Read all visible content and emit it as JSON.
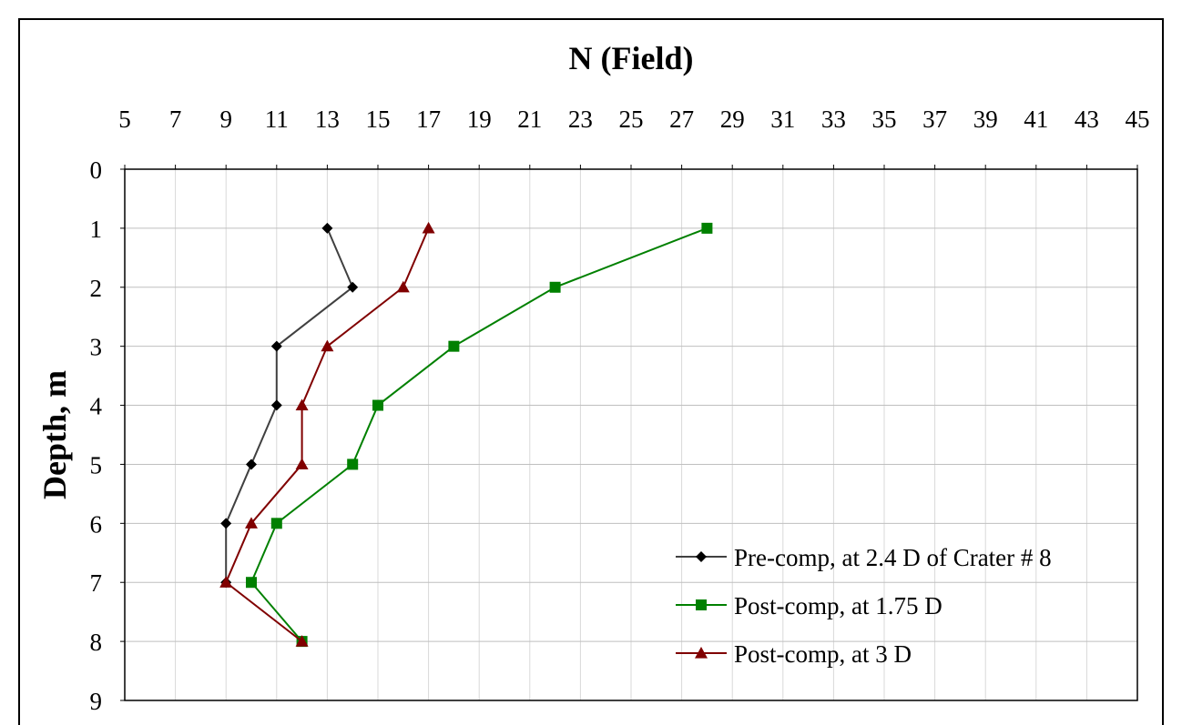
{
  "chart_data": {
    "type": "line",
    "title": "",
    "xlabel": "N (Field)",
    "ylabel": "Depth, m",
    "xlim": [
      5,
      45
    ],
    "ylim": [
      0,
      9
    ],
    "x_axis_position": "top",
    "y_axis_inverted": true,
    "x_ticks": [
      "5",
      "7",
      "9",
      "11",
      "13",
      "15",
      "17",
      "19",
      "21",
      "23",
      "25",
      "27",
      "29",
      "31",
      "33",
      "35",
      "37",
      "39",
      "41",
      "43",
      "45"
    ],
    "y_ticks": [
      "0",
      "1",
      "2",
      "3",
      "4",
      "5",
      "6",
      "7",
      "8",
      "9"
    ],
    "grid": true,
    "legend_position": "bottom-right",
    "series": [
      {
        "name": "Pre-comp, at 2.4 D of Crater # 8",
        "color": "#404040",
        "marker": "diamond",
        "marker_color": "#000000",
        "points": [
          {
            "x": 13,
            "y": 1
          },
          {
            "x": 14,
            "y": 2
          },
          {
            "x": 11,
            "y": 3
          },
          {
            "x": 11,
            "y": 4
          },
          {
            "x": 10,
            "y": 5
          },
          {
            "x": 9,
            "y": 6
          },
          {
            "x": 9,
            "y": 7
          }
        ]
      },
      {
        "name": "Post-comp, at 1.75 D",
        "color": "#008000",
        "marker": "square",
        "marker_color": "#008000",
        "points": [
          {
            "x": 28,
            "y": 1
          },
          {
            "x": 22,
            "y": 2
          },
          {
            "x": 18,
            "y": 3
          },
          {
            "x": 15,
            "y": 4
          },
          {
            "x": 14,
            "y": 5
          },
          {
            "x": 11,
            "y": 6
          },
          {
            "x": 10,
            "y": 7
          },
          {
            "x": 12,
            "y": 8
          }
        ]
      },
      {
        "name": "Post-comp, at 3 D",
        "color": "#800000",
        "marker": "triangle",
        "marker_color": "#800000",
        "points": [
          {
            "x": 17,
            "y": 1
          },
          {
            "x": 16,
            "y": 2
          },
          {
            "x": 13,
            "y": 3
          },
          {
            "x": 12,
            "y": 4
          },
          {
            "x": 12,
            "y": 5
          },
          {
            "x": 10,
            "y": 6
          },
          {
            "x": 9,
            "y": 7
          },
          {
            "x": 12,
            "y": 8
          }
        ]
      }
    ]
  }
}
